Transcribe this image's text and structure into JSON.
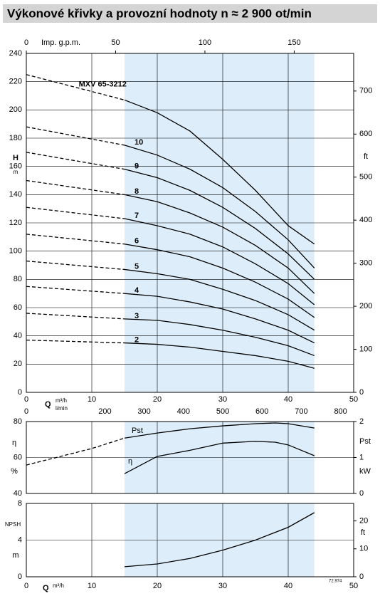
{
  "chart_data": [
    {
      "type": "line",
      "title": "Výkonové křivky a provozní hodnoty n ≈ 2 900 ot/min",
      "annotation": "MXV 65-3212",
      "x": [
        0,
        15,
        20,
        25,
        30,
        35,
        40,
        44
      ],
      "series": [
        {
          "name": "MXV 65-3212",
          "color": "#000000",
          "values": [
            225,
            207,
            198,
            185,
            165,
            143,
            118,
            105
          ]
        },
        {
          "name": "10",
          "color": "#000000",
          "values": [
            188,
            175,
            168,
            158,
            145,
            128,
            108,
            88
          ]
        },
        {
          "name": "9",
          "color": "#000000",
          "values": [
            170,
            158,
            152,
            143,
            131,
            116,
            98,
            80
          ]
        },
        {
          "name": "8",
          "color": "#000000",
          "values": [
            150,
            140,
            135,
            127,
            117,
            104,
            88,
            70
          ]
        },
        {
          "name": "7",
          "color": "#000000",
          "values": [
            131,
            123,
            118,
            112,
            103,
            91,
            77,
            62
          ]
        },
        {
          "name": "6",
          "color": "#000000",
          "values": [
            112,
            105,
            101,
            96,
            88,
            78,
            66,
            53
          ]
        },
        {
          "name": "5",
          "color": "#000000",
          "values": [
            93,
            87,
            84,
            80,
            73,
            65,
            55,
            44
          ]
        },
        {
          "name": "4",
          "color": "#000000",
          "values": [
            75,
            70,
            68,
            64,
            59,
            52,
            44,
            35
          ]
        },
        {
          "name": "3",
          "color": "#000000",
          "values": [
            56,
            52,
            51,
            48,
            44,
            39,
            33,
            26
          ]
        },
        {
          "name": "2",
          "color": "#000000",
          "values": [
            37,
            35,
            34,
            32,
            29,
            26,
            22,
            17
          ]
        }
      ],
      "xlim": [
        0,
        50
      ],
      "xticks": [
        0,
        10,
        20,
        30,
        40,
        50
      ],
      "xlabel": "Q",
      "xunit": "m³/h",
      "x2lim": [
        0,
        183.3
      ],
      "x2ticks": [
        0,
        50,
        100,
        150
      ],
      "x2label": "Imp. g.p.m.",
      "x3lim": [
        0,
        833.3
      ],
      "x3ticks": [
        0,
        200,
        300,
        400,
        500,
        600,
        700,
        800
      ],
      "x3label": "l/min",
      "ylim": [
        0,
        240
      ],
      "yticks": [
        0,
        20,
        40,
        60,
        80,
        100,
        120,
        140,
        160,
        180,
        200,
        220,
        240
      ],
      "ylabel": "H",
      "yunit": "m",
      "y2lim": [
        0,
        787.4
      ],
      "y2ticks": [
        0,
        100,
        200,
        300,
        400,
        500,
        600,
        700
      ],
      "y2label": "ft",
      "shaded_xrange": [
        15,
        44
      ],
      "shade_color": "#ddeefa",
      "grid": true
    },
    {
      "type": "line",
      "x": [
        0,
        10,
        15,
        20,
        25,
        30,
        35,
        38,
        40,
        44
      ],
      "series": [
        {
          "name": "Pst",
          "axis": "y2",
          "color": "#000000",
          "values": [
            0.79,
            1.25,
            1.54,
            1.68,
            1.8,
            1.88,
            1.94,
            1.96,
            1.94,
            1.82
          ]
        },
        {
          "name": "η",
          "color": "#000000",
          "values": [
            null,
            null,
            51,
            60.6,
            64,
            68,
            69,
            68.5,
            67,
            61
          ]
        }
      ],
      "xlim": [
        0,
        50
      ],
      "xticks": [
        0,
        10,
        20,
        30,
        40,
        50
      ],
      "ylim": [
        40,
        80
      ],
      "yticks": [
        40,
        60,
        80
      ],
      "ylabel": "η",
      "yunit": "%",
      "y2lim": [
        0,
        2
      ],
      "y2ticks": [
        0,
        1,
        2
      ],
      "y2label": "Pst",
      "y2unit": "kW",
      "shaded_xrange": [
        15,
        44
      ],
      "shade_color": "#ddeefa",
      "grid": true
    },
    {
      "type": "line",
      "x": [
        15,
        20,
        25,
        30,
        35,
        40,
        44
      ],
      "series": [
        {
          "name": "NPSH",
          "color": "#000000",
          "values": [
            1.1,
            1.4,
            2.0,
            2.9,
            4.0,
            5.4,
            7.0
          ]
        }
      ],
      "xlim": [
        0,
        50
      ],
      "xticks": [
        0,
        10,
        20,
        30,
        40,
        50
      ],
      "xlabel": "Q",
      "xunit": "m³/h",
      "ylim": [
        0,
        8
      ],
      "yticks": [
        0,
        4,
        8
      ],
      "ylabel": "NPSH",
      "yunit": "m",
      "y2lim": [
        0,
        26.25
      ],
      "y2ticks": [
        0,
        10,
        20
      ],
      "y2label": "ft",
      "note": "72.974",
      "shaded_xrange": [
        15,
        44
      ],
      "shade_color": "#ddeefa",
      "grid": true
    }
  ]
}
